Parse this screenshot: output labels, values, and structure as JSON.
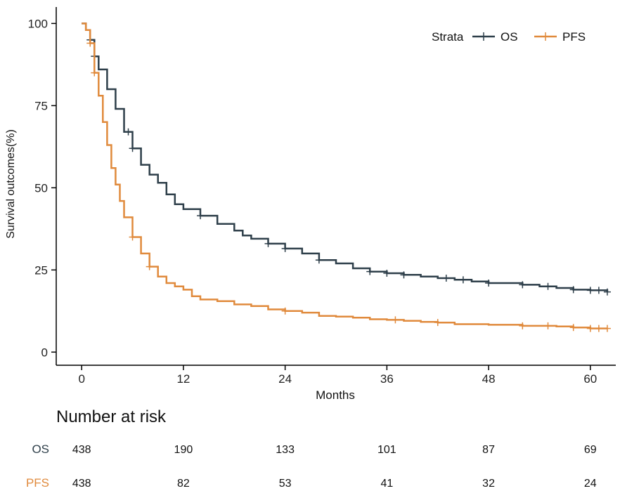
{
  "chart_data": {
    "type": "line",
    "xlabel": "Months",
    "ylabel": "Survival outcomes(%)",
    "xlim": [
      -3,
      63
    ],
    "ylim": [
      -4,
      105
    ],
    "x_ticks": [
      0,
      12,
      24,
      36,
      48,
      60
    ],
    "y_ticks": [
      0,
      25,
      50,
      75,
      100
    ],
    "legend": {
      "title": "Strata",
      "position": "top-right"
    },
    "series": [
      {
        "name": "OS",
        "color": "#2e3f4a",
        "points": [
          [
            0,
            100
          ],
          [
            0.5,
            98
          ],
          [
            1,
            95
          ],
          [
            1.5,
            90
          ],
          [
            2,
            86
          ],
          [
            3,
            80
          ],
          [
            4,
            74
          ],
          [
            5,
            67
          ],
          [
            6,
            62
          ],
          [
            7,
            57
          ],
          [
            8,
            54
          ],
          [
            9,
            51.5
          ],
          [
            10,
            48
          ],
          [
            11,
            45
          ],
          [
            12,
            43.5
          ],
          [
            14,
            41.5
          ],
          [
            16,
            39
          ],
          [
            18,
            37
          ],
          [
            19,
            35.5
          ],
          [
            20,
            34.5
          ],
          [
            22,
            33
          ],
          [
            24,
            31.5
          ],
          [
            26,
            30
          ],
          [
            28,
            28
          ],
          [
            30,
            27
          ],
          [
            32,
            25.5
          ],
          [
            34,
            24.5
          ],
          [
            36,
            24
          ],
          [
            38,
            23.5
          ],
          [
            40,
            23
          ],
          [
            42,
            22.5
          ],
          [
            44,
            22
          ],
          [
            46,
            21.5
          ],
          [
            48,
            21
          ],
          [
            50,
            21
          ],
          [
            52,
            20.5
          ],
          [
            54,
            20
          ],
          [
            56,
            19.5
          ],
          [
            58,
            19
          ],
          [
            60,
            18.8
          ],
          [
            62,
            18.3
          ]
        ],
        "censor_x": [
          1,
          1.5,
          5.5,
          6,
          14,
          22,
          24,
          28,
          34,
          36,
          38,
          43,
          45,
          48,
          52,
          55,
          58,
          60,
          61,
          62
        ]
      },
      {
        "name": "PFS",
        "color": "#e08a3c",
        "points": [
          [
            0,
            100
          ],
          [
            0.5,
            98
          ],
          [
            1,
            94
          ],
          [
            1.5,
            85
          ],
          [
            2,
            78
          ],
          [
            2.5,
            70
          ],
          [
            3,
            63
          ],
          [
            3.5,
            56
          ],
          [
            4,
            51
          ],
          [
            4.5,
            46
          ],
          [
            5,
            41
          ],
          [
            6,
            35
          ],
          [
            7,
            30
          ],
          [
            8,
            26
          ],
          [
            9,
            23
          ],
          [
            10,
            21
          ],
          [
            11,
            20
          ],
          [
            12,
            19
          ],
          [
            13,
            17
          ],
          [
            14,
            16
          ],
          [
            16,
            15.5
          ],
          [
            18,
            14.5
          ],
          [
            20,
            14
          ],
          [
            22,
            13
          ],
          [
            24,
            12.5
          ],
          [
            26,
            12
          ],
          [
            28,
            11
          ],
          [
            30,
            10.8
          ],
          [
            32,
            10.5
          ],
          [
            34,
            10
          ],
          [
            36,
            9.8
          ],
          [
            38,
            9.5
          ],
          [
            40,
            9.2
          ],
          [
            42,
            9
          ],
          [
            44,
            8.5
          ],
          [
            48,
            8.3
          ],
          [
            52,
            8
          ],
          [
            56,
            7.8
          ],
          [
            58,
            7.5
          ],
          [
            60,
            7.2
          ],
          [
            62,
            7.2
          ]
        ],
        "censor_x": [
          1,
          1.5,
          6,
          8,
          24,
          37,
          42,
          52,
          55,
          58,
          60,
          61,
          62
        ]
      }
    ],
    "risk_table": {
      "title": "Number at risk",
      "times": [
        0,
        12,
        24,
        36,
        48,
        60
      ],
      "rows": [
        {
          "name": "OS",
          "color": "#2e3f4a",
          "values": [
            "438",
            "190",
            "133",
            "101",
            "87",
            "69"
          ]
        },
        {
          "name": "PFS",
          "color": "#e08a3c",
          "values": [
            "438",
            "82",
            "53",
            "41",
            "32",
            "24"
          ]
        }
      ]
    }
  }
}
